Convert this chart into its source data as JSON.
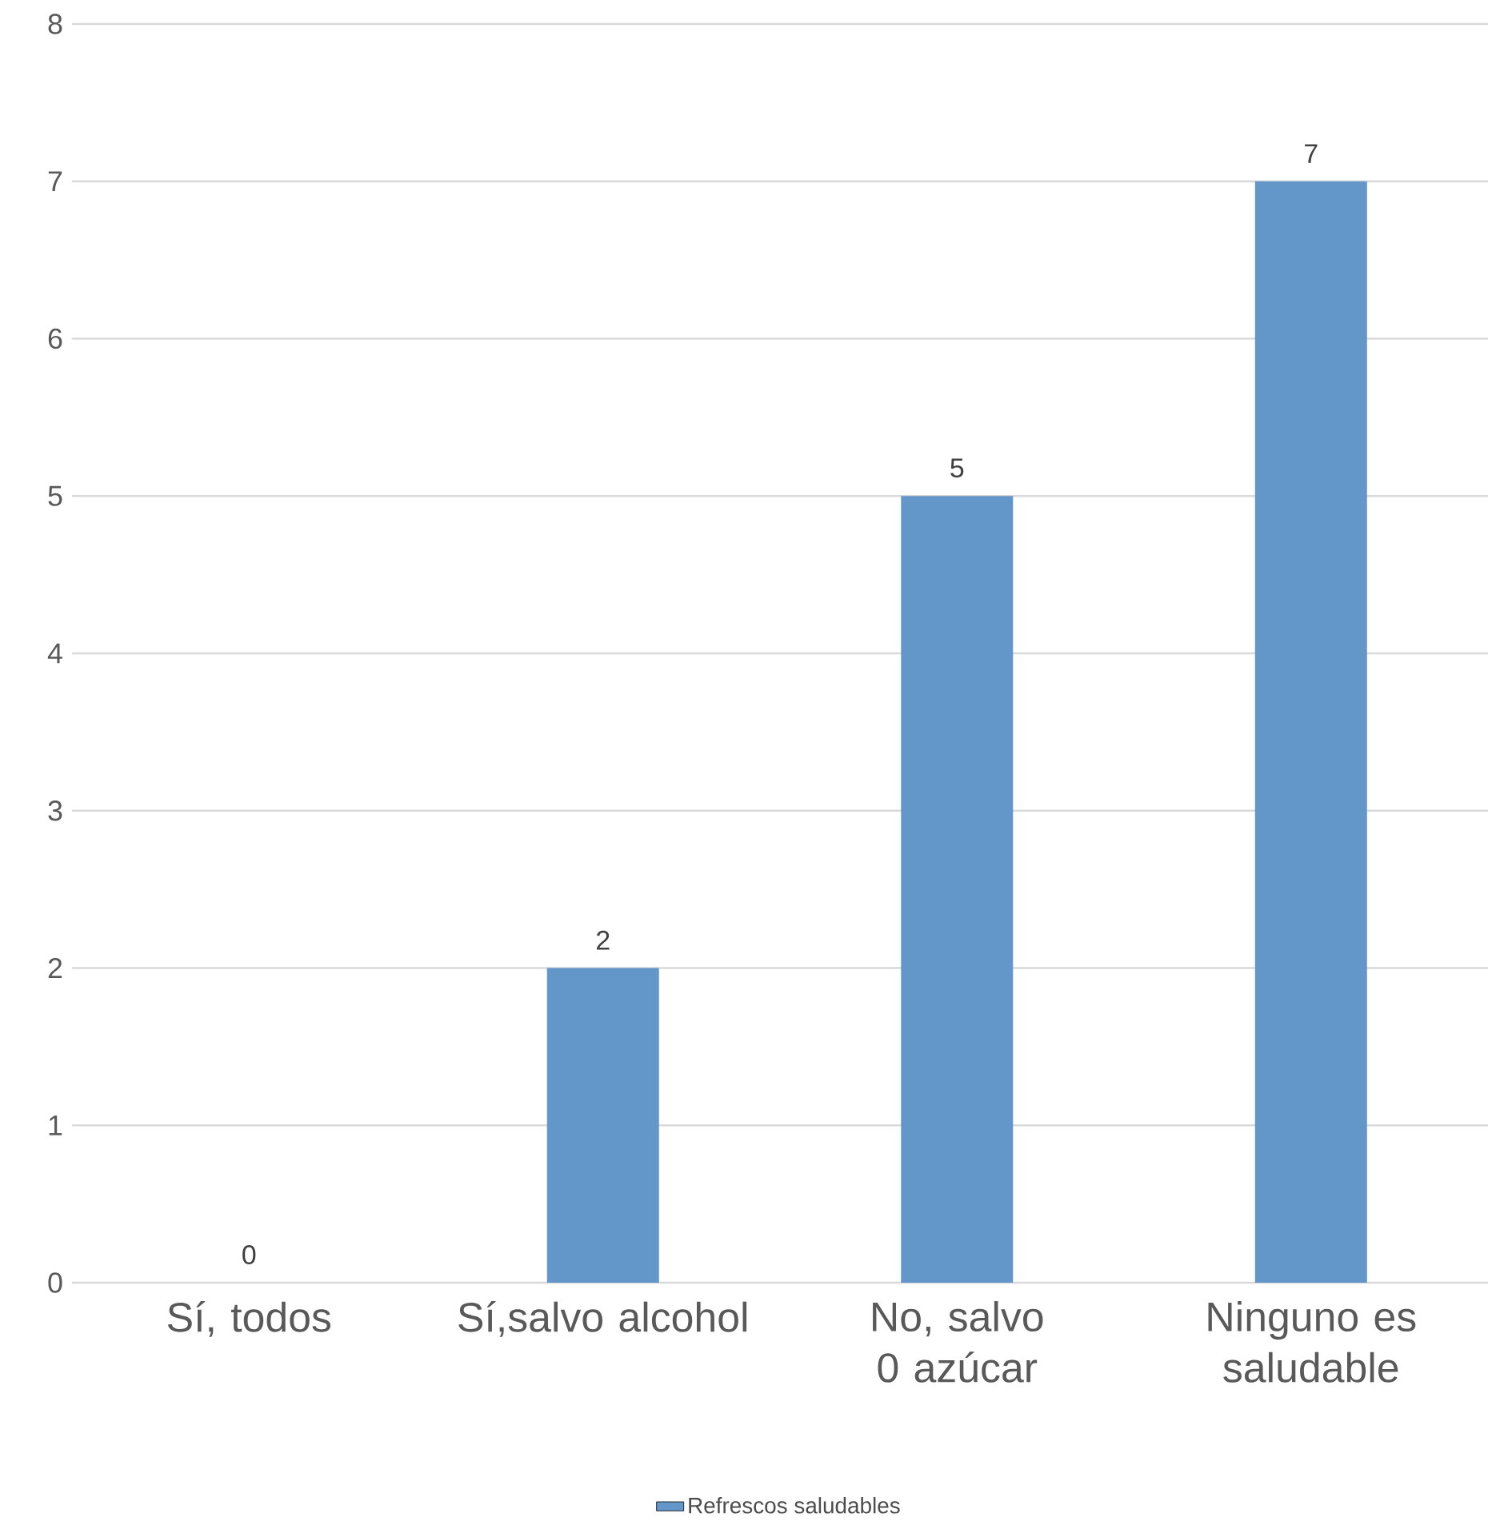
{
  "chart_data": {
    "type": "bar",
    "categories": [
      "Sí, todos",
      "Sí,salvo alcohol",
      "No, salvo 0 azúcar",
      "Ninguno es saludable"
    ],
    "series": [
      {
        "name": "Refrescos saludables",
        "color": "#6396c9",
        "values": [
          0,
          2,
          5,
          7
        ]
      }
    ],
    "ylim": [
      0,
      8
    ],
    "yticks": [
      0,
      1,
      2,
      3,
      4,
      5,
      6,
      7,
      8
    ],
    "grid": "y",
    "legend": "bottom",
    "data_labels": true
  }
}
